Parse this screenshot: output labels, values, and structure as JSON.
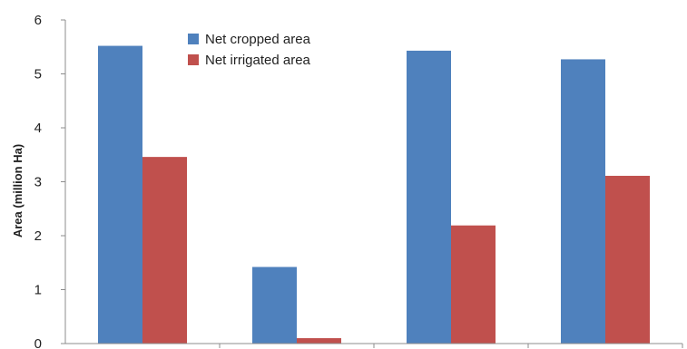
{
  "chart_data": {
    "type": "bar",
    "title": "",
    "xlabel": "",
    "ylabel": "Area (million Ha)",
    "ylim": [
      0,
      6
    ],
    "yticks": [
      0,
      1,
      2,
      3,
      4,
      5,
      6
    ],
    "categories": [
      "",
      "",
      "",
      ""
    ],
    "grid": false,
    "legend_position": "top",
    "series": [
      {
        "name": "Net cropped area",
        "color": "#4F81BD",
        "values": [
          5.52,
          1.42,
          5.43,
          5.27
        ]
      },
      {
        "name": "Net irrigated area",
        "color": "#C0504D",
        "values": [
          3.46,
          0.1,
          2.19,
          3.11
        ]
      }
    ]
  }
}
